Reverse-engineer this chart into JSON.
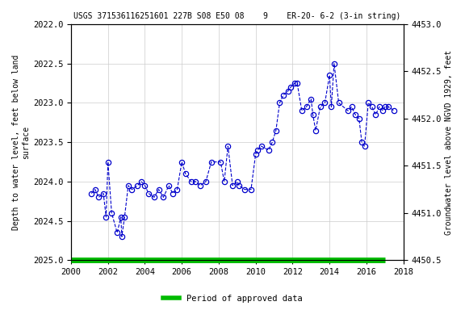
{
  "title": "USGS 371536116251601 227B S08 E50 08    9    ER-20- 6-2 (3-in string)",
  "ylabel_left": "Depth to water level, feet below land\nsurface",
  "ylabel_right": "Groundwater level above NGVD 1929, feet",
  "ylim_left": [
    2025.0,
    2022.0
  ],
  "ylim_right": [
    4450.5,
    4453.0
  ],
  "xlim": [
    2000,
    2018
  ],
  "xticks": [
    2000,
    2002,
    2004,
    2006,
    2008,
    2010,
    2012,
    2014,
    2016,
    2018
  ],
  "yticks_left": [
    2022.0,
    2022.5,
    2023.0,
    2023.5,
    2024.0,
    2024.5,
    2025.0
  ],
  "yticks_right": [
    4450.5,
    4451.0,
    4451.5,
    4452.0,
    4452.5,
    4453.0
  ],
  "legend_label": "Period of approved data",
  "legend_color": "#00bb00",
  "data_color": "#0000cc",
  "background_color": "#ffffff",
  "grid_color": "#cccccc",
  "data_x": [
    2001.1,
    2001.3,
    2001.5,
    2001.75,
    2001.9,
    2002.0,
    2002.2,
    2002.5,
    2002.7,
    2002.75,
    2002.9,
    2003.1,
    2003.3,
    2003.6,
    2003.8,
    2004.0,
    2004.2,
    2004.5,
    2004.75,
    2005.0,
    2005.3,
    2005.5,
    2005.75,
    2006.0,
    2006.2,
    2006.5,
    2006.75,
    2007.0,
    2007.3,
    2007.6,
    2008.1,
    2008.3,
    2008.5,
    2008.75,
    2009.0,
    2009.1,
    2009.4,
    2009.75,
    2010.0,
    2010.1,
    2010.3,
    2010.7,
    2010.9,
    2011.1,
    2011.3,
    2011.5,
    2011.75,
    2011.9,
    2012.1,
    2012.25,
    2012.5,
    2012.75,
    2013.0,
    2013.1,
    2013.25,
    2013.5,
    2013.75,
    2014.0,
    2014.1,
    2014.25,
    2014.5,
    2015.0,
    2015.2,
    2015.4,
    2015.6,
    2015.75,
    2015.9,
    2016.1,
    2016.3,
    2016.5,
    2016.7,
    2016.9,
    2017.0,
    2017.2,
    2017.5
  ],
  "data_y": [
    2024.15,
    2024.1,
    2024.2,
    2024.15,
    2024.45,
    2023.75,
    2024.4,
    2024.65,
    2024.45,
    2024.7,
    2024.45,
    2024.05,
    2024.1,
    2024.05,
    2024.0,
    2024.05,
    2024.15,
    2024.2,
    2024.1,
    2024.2,
    2024.05,
    2024.15,
    2024.1,
    2023.75,
    2023.9,
    2024.0,
    2024.0,
    2024.05,
    2024.0,
    2023.75,
    2023.75,
    2024.0,
    2023.55,
    2024.05,
    2024.0,
    2024.05,
    2024.1,
    2024.1,
    2023.65,
    2023.6,
    2023.55,
    2023.6,
    2023.5,
    2023.35,
    2023.0,
    2022.9,
    2022.85,
    2022.8,
    2022.75,
    2022.75,
    2023.1,
    2023.05,
    2022.95,
    2023.15,
    2023.35,
    2023.05,
    2023.0,
    2022.65,
    2023.05,
    2022.5,
    2023.0,
    2023.1,
    2023.05,
    2023.15,
    2023.2,
    2023.5,
    2023.55,
    2023.0,
    2023.05,
    2023.15,
    2023.05,
    2023.1,
    2023.05,
    2023.05,
    2023.1
  ]
}
